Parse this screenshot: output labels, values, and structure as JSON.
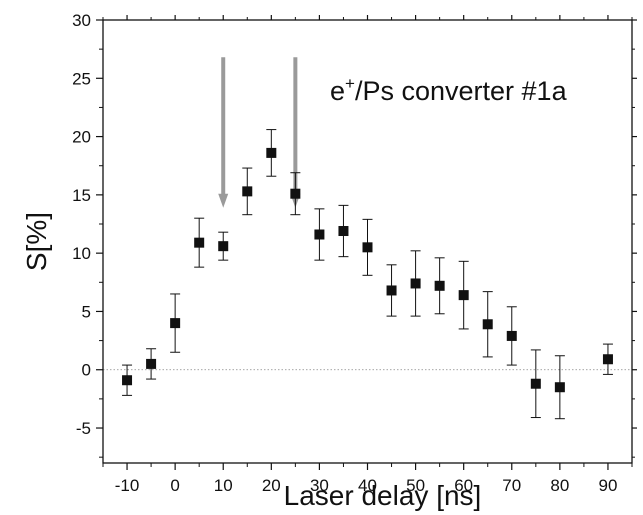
{
  "chart_data": {
    "type": "scatter",
    "xlabel": "Laser delay [ns]",
    "ylabel": "S[%]",
    "xlim": [
      -15,
      95
    ],
    "ylim": [
      -8,
      30
    ],
    "x_ticks": [
      -10,
      0,
      10,
      20,
      30,
      40,
      50,
      60,
      70,
      80,
      90
    ],
    "x_tick_labels": [
      "-10",
      "0",
      "10",
      "20",
      "30",
      "40",
      "50",
      "60",
      "70",
      "80",
      "90"
    ],
    "y_ticks": [
      -5,
      0,
      5,
      10,
      15,
      20,
      25,
      30
    ],
    "y_tick_labels": [
      "-5",
      "0",
      "5",
      "10",
      "15",
      "20",
      "25",
      "30"
    ],
    "grid": false,
    "zero_line": true,
    "annotation": {
      "base": "e",
      "superscript": "+",
      "rest": "/Ps converter #1a"
    },
    "arrows_at_x": [
      10,
      25
    ],
    "series": [
      {
        "marker": "square",
        "color": "#111111",
        "points": [
          {
            "x": -10,
            "y": -0.9,
            "err": 1.3
          },
          {
            "x": -5,
            "y": 0.5,
            "err": 1.3
          },
          {
            "x": 0,
            "y": 4.0,
            "err": 2.5
          },
          {
            "x": 5,
            "y": 10.9,
            "err": 2.1
          },
          {
            "x": 10,
            "y": 10.6,
            "err": 1.2
          },
          {
            "x": 15,
            "y": 15.3,
            "err": 2.0
          },
          {
            "x": 20,
            "y": 18.6,
            "err": 2.0
          },
          {
            "x": 25,
            "y": 15.1,
            "err": 1.8
          },
          {
            "x": 30,
            "y": 11.6,
            "err": 2.2
          },
          {
            "x": 35,
            "y": 11.9,
            "err": 2.2
          },
          {
            "x": 40,
            "y": 10.5,
            "err": 2.4
          },
          {
            "x": 45,
            "y": 6.8,
            "err": 2.2
          },
          {
            "x": 50,
            "y": 7.4,
            "err": 2.8
          },
          {
            "x": 55,
            "y": 7.2,
            "err": 2.4
          },
          {
            "x": 60,
            "y": 6.4,
            "err": 2.9
          },
          {
            "x": 65,
            "y": 3.9,
            "err": 2.8
          },
          {
            "x": 70,
            "y": 2.9,
            "err": 2.5
          },
          {
            "x": 75,
            "y": -1.2,
            "err": 2.9
          },
          {
            "x": 80,
            "y": -1.5,
            "err": 2.7
          },
          {
            "x": 90,
            "y": 0.9,
            "err": 1.3
          }
        ]
      }
    ]
  }
}
